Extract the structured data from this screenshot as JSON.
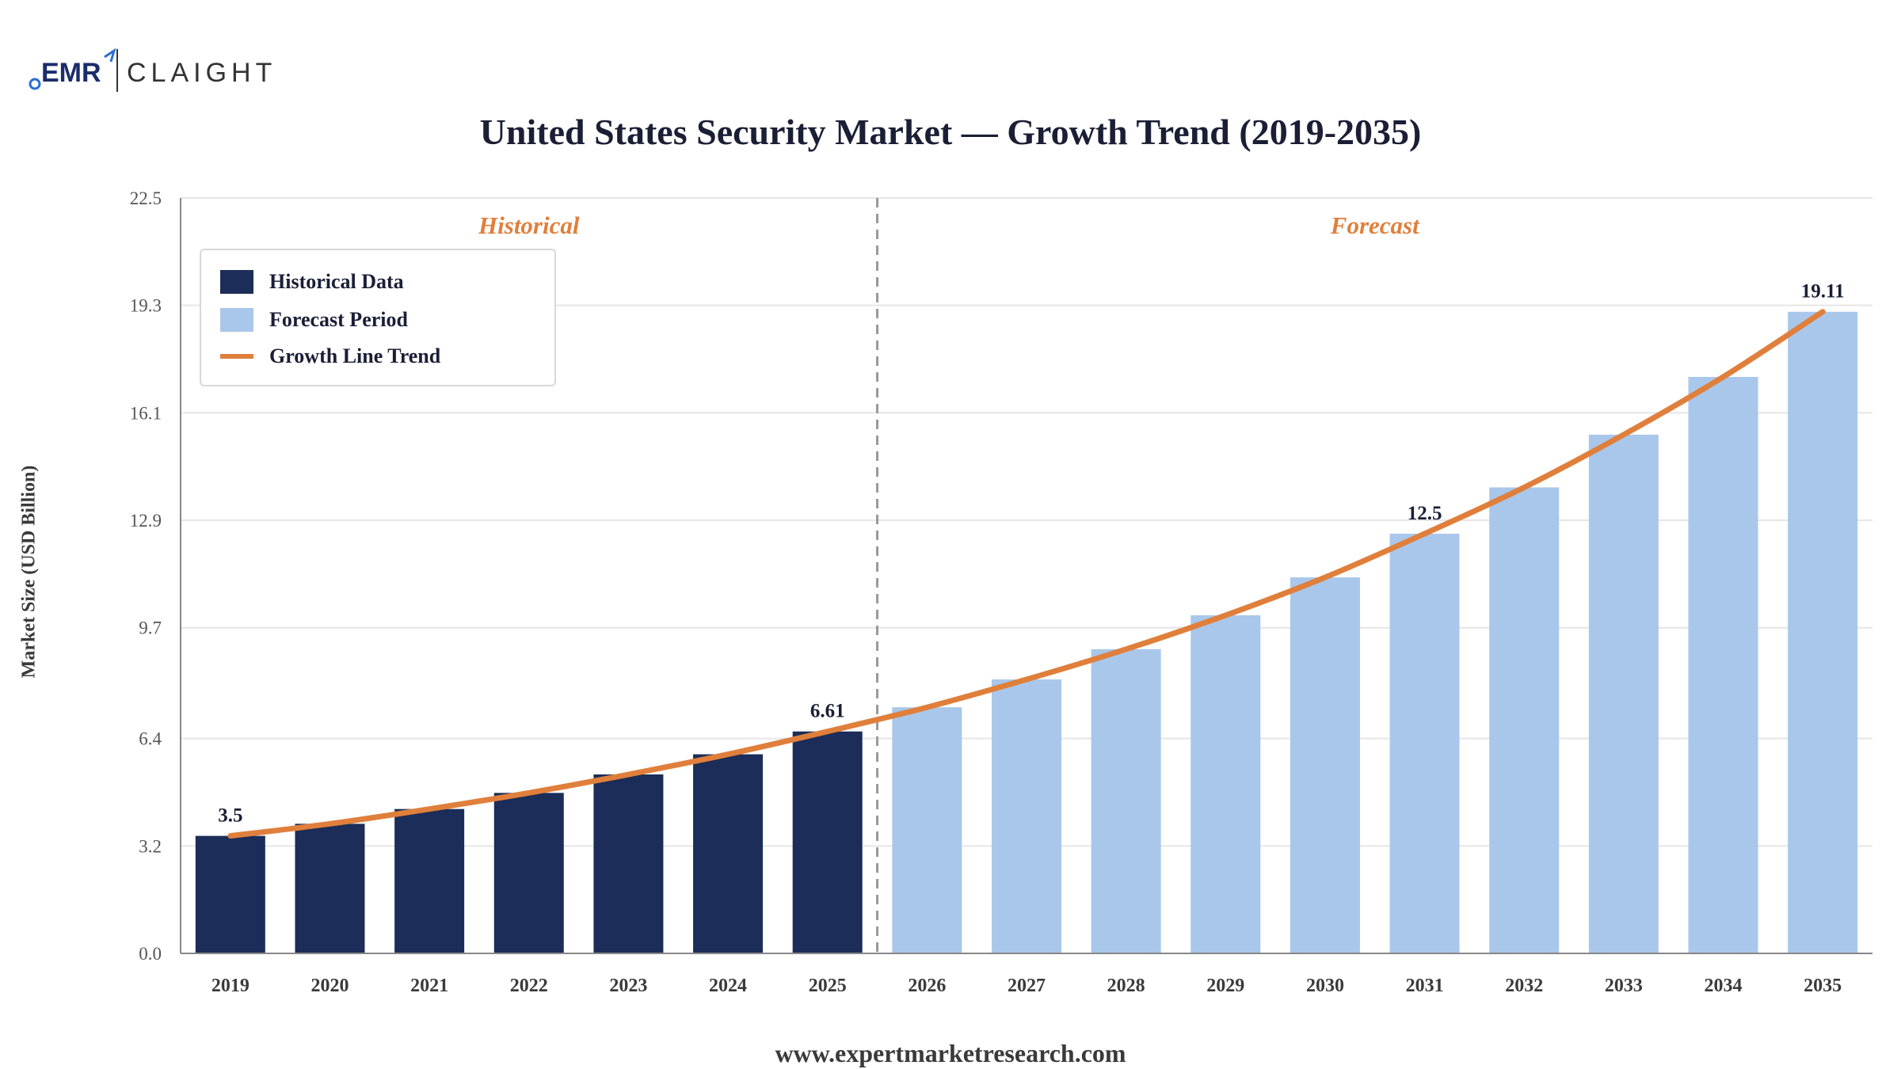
{
  "brand": {
    "emr": "EMR",
    "claight": "CLAIGHT",
    "colors": {
      "emr_blue": "#1a2d6b",
      "claight_gray": "#333333",
      "accent_blue": "#2a6fd6"
    }
  },
  "footer": {
    "url": "www.expertmarketresearch.com"
  },
  "legend": {
    "items": [
      {
        "label": "Historical Data",
        "type": "swatch",
        "color": "#1b2d58"
      },
      {
        "label": "Forecast Period",
        "type": "swatch",
        "color": "#a9c7ea"
      },
      {
        "label": "Growth Line Trend",
        "type": "line",
        "color": "#e07f3b"
      }
    ]
  },
  "chart_data": {
    "type": "bar",
    "title": "United States Security Market — Growth Trend (2019-2035)",
    "ylabel": "Market Size (USD Billion)",
    "xlabel": "",
    "ylim": [
      0,
      22.5
    ],
    "yticks": [
      "0.0",
      "3.2",
      "6.4",
      "9.7",
      "12.9",
      "16.1",
      "19.3",
      "22.5"
    ],
    "ytick_values": [
      0,
      3.2,
      6.4,
      9.7,
      12.9,
      16.1,
      19.3,
      22.5
    ],
    "grid": true,
    "legend_position": "top-left",
    "categories": [
      "2019",
      "2020",
      "2021",
      "2022",
      "2023",
      "2024",
      "2025",
      "2026",
      "2027",
      "2028",
      "2029",
      "2030",
      "2031",
      "2032",
      "2033",
      "2034",
      "2035"
    ],
    "values": [
      3.5,
      3.86,
      4.3,
      4.78,
      5.33,
      5.93,
      6.61,
      7.33,
      8.16,
      9.06,
      10.07,
      11.2,
      12.5,
      13.88,
      15.45,
      17.17,
      19.11
    ],
    "period": [
      "historical",
      "historical",
      "historical",
      "historical",
      "historical",
      "historical",
      "historical",
      "forecast",
      "forecast",
      "forecast",
      "forecast",
      "forecast",
      "forecast",
      "forecast",
      "forecast",
      "forecast",
      "forecast"
    ],
    "colors": {
      "historical": "#1b2d58",
      "forecast": "#a9c7ea",
      "trend": "#e07f3b",
      "section_label": "#e07f3b",
      "grid": "#e6e6e6",
      "divider": "#999999"
    },
    "section_labels": {
      "historical": "Historical",
      "forecast": "Forecast"
    },
    "data_labels": [
      {
        "category": "2019",
        "text": "3.5"
      },
      {
        "category": "2025",
        "text": "6.61"
      },
      {
        "category": "2031",
        "text": "12.5"
      },
      {
        "category": "2035",
        "text": "19.11"
      }
    ],
    "divider_after": "2025"
  }
}
